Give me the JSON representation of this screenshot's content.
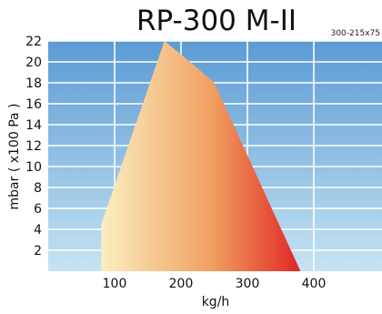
{
  "chart_data": {
    "type": "area",
    "title": "RP-300 M-II",
    "subtitle": "300-215x75",
    "xlabel": "kg/h",
    "ylabel": "mbar ( x100 Pa )",
    "xlim": [
      0,
      480
    ],
    "ylim": [
      0,
      22
    ],
    "x_ticks": [
      100,
      200,
      300,
      400
    ],
    "y_ticks": [
      2,
      4,
      6,
      8,
      10,
      12,
      14,
      16,
      18,
      20,
      22
    ],
    "grid": true,
    "series": [
      {
        "points": [
          {
            "x": 80,
            "y": 0
          },
          {
            "x": 80,
            "y": 4.5
          },
          {
            "x": 175,
            "y": 22
          },
          {
            "x": 210,
            "y": 20.2
          },
          {
            "x": 250,
            "y": 18
          },
          {
            "x": 380,
            "y": 0
          }
        ]
      }
    ],
    "colors": {
      "background_top": "#5b9bd5",
      "background_bottom": "#c6e3f2",
      "fill_left": "#fbeec0",
      "fill_mid": "#f0a060",
      "fill_right": "#e02424"
    }
  }
}
